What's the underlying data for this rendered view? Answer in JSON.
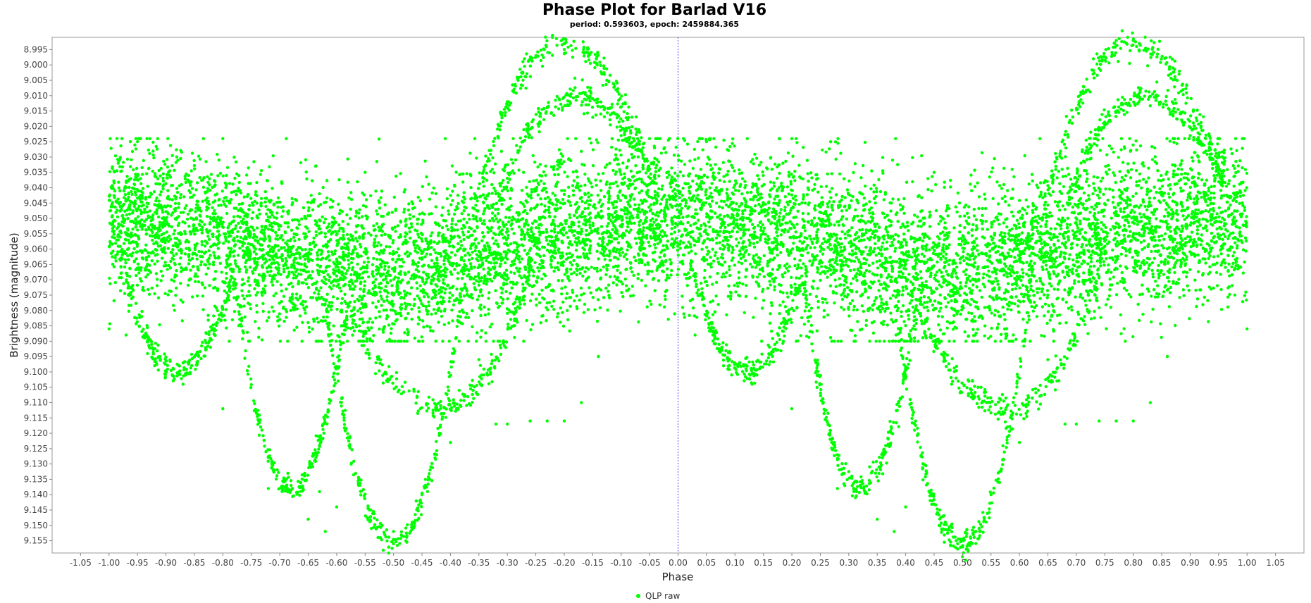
{
  "chart_data": {
    "type": "scatter",
    "title": "Phase Plot for Barlad V16",
    "subtitle": "period: 0.593603, epoch: 2459884.365",
    "xlabel": "Phase",
    "ylabel": "Brightness (magnitude)",
    "xlim": [
      -1.1,
      1.1
    ],
    "ylim": [
      9.159,
      8.991
    ],
    "y_inverted": true,
    "x_ticks": [
      "-1.05",
      "-1.00",
      "-0.95",
      "-0.90",
      "-0.85",
      "-0.80",
      "-0.75",
      "-0.70",
      "-0.65",
      "-0.60",
      "-0.55",
      "-0.50",
      "-0.45",
      "-0.40",
      "-0.35",
      "-0.30",
      "-0.25",
      "-0.20",
      "-0.15",
      "-0.10",
      "-0.05",
      "0.00",
      "0.05",
      "0.10",
      "0.15",
      "0.20",
      "0.25",
      "0.30",
      "0.35",
      "0.40",
      "0.45",
      "0.50",
      "0.55",
      "0.60",
      "0.65",
      "0.70",
      "0.75",
      "0.80",
      "0.85",
      "0.90",
      "0.95",
      "1.00",
      "1.05"
    ],
    "y_ticks": [
      "8.995",
      "9.000",
      "9.005",
      "9.010",
      "9.015",
      "9.020",
      "9.025",
      "9.030",
      "9.035",
      "9.040",
      "9.045",
      "9.050",
      "9.055",
      "9.060",
      "9.065",
      "9.070",
      "9.075",
      "9.080",
      "9.085",
      "9.090",
      "9.095",
      "9.100",
      "9.105",
      "9.110",
      "9.115",
      "9.120",
      "9.125",
      "9.130",
      "9.135",
      "9.140",
      "9.145",
      "9.150",
      "9.155"
    ],
    "zero_marker_x": 0.0,
    "grid": false,
    "legend_placement": "bottom-center",
    "series": [
      {
        "name": "QLP raw",
        "color": "#00ff00",
        "marker": "circle",
        "profile": [
          [
            -1.0,
            9.05
          ],
          [
            -0.9,
            9.051
          ],
          [
            -0.8,
            9.055
          ],
          [
            -0.7,
            9.062
          ],
          [
            -0.6,
            9.066
          ],
          [
            -0.5,
            9.067
          ],
          [
            -0.4,
            9.063
          ],
          [
            -0.3,
            9.058
          ],
          [
            -0.2,
            9.054
          ],
          [
            -0.1,
            9.051
          ],
          [
            0.0,
            9.05
          ],
          [
            0.1,
            9.051
          ],
          [
            0.2,
            9.055
          ],
          [
            0.3,
            9.062
          ],
          [
            0.4,
            9.066
          ],
          [
            0.5,
            9.067
          ],
          [
            0.6,
            9.063
          ],
          [
            0.7,
            9.058
          ],
          [
            0.8,
            9.054
          ],
          [
            0.9,
            9.051
          ],
          [
            1.0,
            9.05
          ]
        ],
        "spread": 0.03,
        "points": [
          [
            -0.8,
            9.024
          ],
          [
            -0.95,
            9.025
          ],
          [
            -0.55,
            9.035
          ],
          [
            -0.2,
            8.993
          ],
          [
            -0.27,
            8.998
          ],
          [
            -0.19,
            9.012
          ],
          [
            -0.1,
            9.023
          ],
          [
            -0.5,
            9.156
          ],
          [
            -0.52,
            9.15
          ],
          [
            -0.47,
            9.152
          ],
          [
            -0.54,
            9.145
          ],
          [
            -0.45,
            9.14
          ],
          [
            -0.68,
            9.137
          ],
          [
            -0.72,
            9.138
          ],
          [
            -0.62,
            9.152
          ],
          [
            -0.65,
            9.148
          ],
          [
            -0.6,
            9.144
          ],
          [
            -0.63,
            9.139
          ],
          [
            -0.3,
            9.117
          ],
          [
            -0.26,
            9.116
          ],
          [
            -0.23,
            9.116
          ],
          [
            -0.2,
            9.116
          ],
          [
            -0.17,
            9.11
          ],
          [
            -0.14,
            9.095
          ],
          [
            -0.32,
            9.117
          ],
          [
            -0.8,
            9.112
          ],
          [
            -0.87,
            9.104
          ],
          [
            -0.92,
            9.098
          ],
          [
            -0.97,
            9.088
          ],
          [
            -1.0,
            9.086
          ],
          [
            0.8,
            8.992
          ],
          [
            0.73,
            8.998
          ],
          [
            0.81,
            9.012
          ],
          [
            0.9,
            9.023
          ],
          [
            0.2,
            9.024
          ],
          [
            0.05,
            9.025
          ],
          [
            0.45,
            9.035
          ],
          [
            0.5,
            9.157
          ],
          [
            0.48,
            9.15
          ],
          [
            0.53,
            9.152
          ],
          [
            0.46,
            9.145
          ],
          [
            0.55,
            9.14
          ],
          [
            0.32,
            9.137
          ],
          [
            0.28,
            9.138
          ],
          [
            0.38,
            9.152
          ],
          [
            0.35,
            9.148
          ],
          [
            0.4,
            9.144
          ],
          [
            0.7,
            9.117
          ],
          [
            0.74,
            9.116
          ],
          [
            0.77,
            9.116
          ],
          [
            0.8,
            9.116
          ],
          [
            0.83,
            9.11
          ],
          [
            0.86,
            9.095
          ],
          [
            0.68,
            9.117
          ],
          [
            0.2,
            9.112
          ],
          [
            0.13,
            9.104
          ],
          [
            0.08,
            9.098
          ],
          [
            0.03,
            9.088
          ],
          [
            1.0,
            9.086
          ],
          [
            -0.4,
            9.123
          ],
          [
            0.6,
            9.123
          ],
          [
            -0.35,
            9.096
          ],
          [
            0.65,
            9.096
          ]
        ],
        "point_count_generated": 9000
      }
    ]
  }
}
